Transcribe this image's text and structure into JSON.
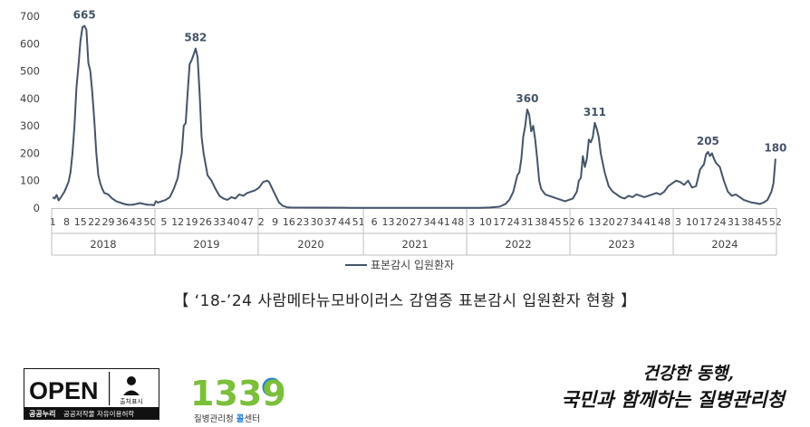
{
  "chart_data": {
    "type": "line",
    "title": "",
    "caption": "【 ‘18-’24 사람메타뉴모바이러스 감염증 표본감시 입원환자 현황 】",
    "xlabel": "",
    "ylabel": "",
    "ylim": [
      0,
      700
    ],
    "yticks": [
      0,
      100,
      200,
      300,
      400,
      500,
      600,
      700
    ],
    "grid": false,
    "legend": "bottom-center",
    "line_color": "#44546a",
    "years": [
      "2018",
      "2019",
      "2020",
      "2021",
      "2022",
      "2023",
      "2024"
    ],
    "week_ticks": [
      [
        "1",
        "8",
        "15",
        "22",
        "29",
        "36",
        "43",
        "50"
      ],
      [
        "5",
        "12",
        "19",
        "26",
        "33",
        "40",
        "47"
      ],
      [
        "2",
        "9",
        "16",
        "23",
        "30",
        "37",
        "44",
        "51"
      ],
      [
        "6",
        "13",
        "20",
        "27",
        "34",
        "41",
        "48"
      ],
      [
        "3",
        "10",
        "17",
        "24",
        "31",
        "38",
        "45",
        "52"
      ],
      [
        "6",
        "13",
        "20",
        "27",
        "34",
        "41",
        "48"
      ],
      [
        "3",
        "10",
        "17",
        "24",
        "31",
        "38",
        "45",
        "52"
      ]
    ],
    "annotations": [
      {
        "label": "665",
        "week_index": 16,
        "value": 665
      },
      {
        "label": "582",
        "week_index": 72,
        "value": 582
      },
      {
        "label": "360",
        "week_index": 239,
        "value": 360
      },
      {
        "label": "311",
        "week_index": 273,
        "value": 311
      },
      {
        "label": "205",
        "week_index": 330,
        "value": 205
      },
      {
        "label": "180",
        "week_index": 364,
        "value": 180
      }
    ],
    "series": [
      {
        "name": "표본감시 입원환자",
        "control_points": [
          [
            0,
            40
          ],
          [
            1,
            35
          ],
          [
            2,
            48
          ],
          [
            3,
            28
          ],
          [
            4,
            38
          ],
          [
            6,
            60
          ],
          [
            8,
            95
          ],
          [
            9,
            130
          ],
          [
            10,
            200
          ],
          [
            11,
            300
          ],
          [
            12,
            440
          ],
          [
            13,
            520
          ],
          [
            14,
            610
          ],
          [
            15,
            660
          ],
          [
            16,
            665
          ],
          [
            17,
            650
          ],
          [
            18,
            530
          ],
          [
            19,
            500
          ],
          [
            20,
            420
          ],
          [
            21,
            320
          ],
          [
            22,
            200
          ],
          [
            23,
            120
          ],
          [
            24,
            90
          ],
          [
            25,
            70
          ],
          [
            26,
            55
          ],
          [
            28,
            50
          ],
          [
            30,
            35
          ],
          [
            32,
            25
          ],
          [
            34,
            20
          ],
          [
            36,
            15
          ],
          [
            38,
            12
          ],
          [
            40,
            12
          ],
          [
            42,
            15
          ],
          [
            44,
            18
          ],
          [
            46,
            15
          ],
          [
            48,
            12
          ],
          [
            50,
            12
          ],
          [
            51,
            10
          ],
          [
            52,
            25
          ],
          [
            53,
            20
          ],
          [
            55,
            25
          ],
          [
            57,
            30
          ],
          [
            59,
            40
          ],
          [
            61,
            70
          ],
          [
            63,
            110
          ],
          [
            64,
            160
          ],
          [
            65,
            200
          ],
          [
            66,
            300
          ],
          [
            67,
            310
          ],
          [
            68,
            420
          ],
          [
            69,
            525
          ],
          [
            70,
            540
          ],
          [
            71,
            560
          ],
          [
            72,
            582
          ],
          [
            73,
            550
          ],
          [
            74,
            420
          ],
          [
            75,
            260
          ],
          [
            76,
            200
          ],
          [
            77,
            160
          ],
          [
            78,
            120
          ],
          [
            80,
            100
          ],
          [
            82,
            70
          ],
          [
            84,
            45
          ],
          [
            86,
            35
          ],
          [
            88,
            30
          ],
          [
            90,
            40
          ],
          [
            92,
            35
          ],
          [
            94,
            50
          ],
          [
            96,
            45
          ],
          [
            98,
            55
          ],
          [
            100,
            60
          ],
          [
            102,
            65
          ],
          [
            104,
            75
          ],
          [
            106,
            95
          ],
          [
            108,
            100
          ],
          [
            109,
            95
          ],
          [
            110,
            80
          ],
          [
            112,
            50
          ],
          [
            114,
            20
          ],
          [
            116,
            8
          ],
          [
            118,
            3
          ],
          [
            120,
            2
          ],
          [
            150,
            1
          ],
          [
            180,
            1
          ],
          [
            200,
            1
          ],
          [
            215,
            1
          ],
          [
            220,
            2
          ],
          [
            225,
            5
          ],
          [
            228,
            15
          ],
          [
            230,
            30
          ],
          [
            232,
            60
          ],
          [
            234,
            120
          ],
          [
            235,
            130
          ],
          [
            236,
            180
          ],
          [
            237,
            260
          ],
          [
            238,
            300
          ],
          [
            239,
            360
          ],
          [
            240,
            340
          ],
          [
            241,
            280
          ],
          [
            242,
            300
          ],
          [
            243,
            250
          ],
          [
            244,
            180
          ],
          [
            245,
            100
          ],
          [
            246,
            70
          ],
          [
            248,
            50
          ],
          [
            250,
            45
          ],
          [
            252,
            40
          ],
          [
            254,
            35
          ],
          [
            256,
            30
          ],
          [
            258,
            25
          ],
          [
            260,
            30
          ],
          [
            262,
            35
          ],
          [
            264,
            60
          ],
          [
            265,
            100
          ],
          [
            266,
            110
          ],
          [
            267,
            190
          ],
          [
            268,
            150
          ],
          [
            269,
            180
          ],
          [
            270,
            250
          ],
          [
            271,
            240
          ],
          [
            272,
            260
          ],
          [
            273,
            311
          ],
          [
            274,
            290
          ],
          [
            275,
            260
          ],
          [
            276,
            200
          ],
          [
            278,
            130
          ],
          [
            280,
            80
          ],
          [
            282,
            60
          ],
          [
            284,
            50
          ],
          [
            286,
            40
          ],
          [
            288,
            35
          ],
          [
            290,
            45
          ],
          [
            292,
            40
          ],
          [
            294,
            50
          ],
          [
            296,
            45
          ],
          [
            298,
            40
          ],
          [
            300,
            45
          ],
          [
            302,
            50
          ],
          [
            304,
            55
          ],
          [
            306,
            50
          ],
          [
            308,
            60
          ],
          [
            310,
            80
          ],
          [
            312,
            90
          ],
          [
            314,
            100
          ],
          [
            316,
            95
          ],
          [
            318,
            85
          ],
          [
            320,
            100
          ],
          [
            322,
            75
          ],
          [
            324,
            80
          ],
          [
            326,
            140
          ],
          [
            328,
            160
          ],
          [
            329,
            195
          ],
          [
            330,
            205
          ],
          [
            331,
            190
          ],
          [
            332,
            200
          ],
          [
            333,
            180
          ],
          [
            334,
            165
          ],
          [
            336,
            150
          ],
          [
            338,
            100
          ],
          [
            340,
            60
          ],
          [
            342,
            45
          ],
          [
            344,
            50
          ],
          [
            346,
            40
          ],
          [
            348,
            30
          ],
          [
            350,
            25
          ],
          [
            352,
            20
          ],
          [
            354,
            18
          ],
          [
            356,
            15
          ],
          [
            358,
            20
          ],
          [
            360,
            30
          ],
          [
            362,
            60
          ],
          [
            363,
            90
          ],
          [
            364,
            180
          ]
        ]
      }
    ]
  },
  "footer": {
    "open_logo_text": "OPEN",
    "open_badge_text": "출처표시",
    "open_sub_bold": "공공누리",
    "open_sub_text": "공공저작물 자유이용허락",
    "center_number": "1339",
    "center_name_prefix": "질병관리청 ",
    "center_name_highlight": "콜",
    "center_name_suffix": "센터",
    "slogan_line1": "건강한 동행,",
    "slogan_line2": "국민과 함께하는 질병관리청"
  }
}
